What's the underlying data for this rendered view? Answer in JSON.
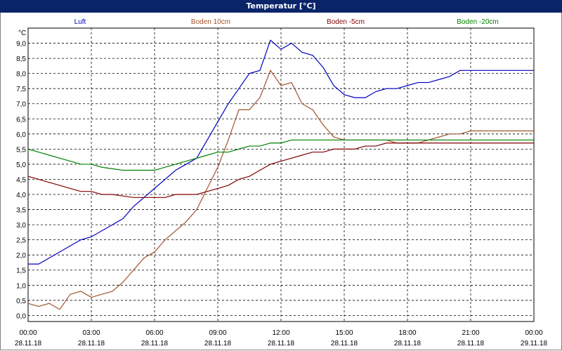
{
  "window": {
    "title": "Temperatur [°C]"
  },
  "chart_data": {
    "type": "line",
    "title": "Temperatur [°C]",
    "ylabel": "°C",
    "ylim": [
      -0.2,
      9.6
    ],
    "grid": true,
    "legend": "top",
    "y_ticks": [
      "9,0",
      "8,5",
      "8,0",
      "7,5",
      "7,0",
      "6,5",
      "6,0",
      "5,5",
      "5,0",
      "4,5",
      "4,0",
      "3,5",
      "3,0",
      "2,5",
      "2,0",
      "1,5",
      "1,0",
      "0,5",
      "0,0"
    ],
    "x_ticks": [
      {
        "time": "00:00",
        "date": "28.11.18"
      },
      {
        "time": "03:00",
        "date": "28.11.18"
      },
      {
        "time": "06:00",
        "date": "28.11.18"
      },
      {
        "time": "09:00",
        "date": "28.11.18"
      },
      {
        "time": "12:00",
        "date": "28.11.18"
      },
      {
        "time": "15:00",
        "date": "28.11.18"
      },
      {
        "time": "18:00",
        "date": "28.11.18"
      },
      {
        "time": "21:00",
        "date": "28.11.18"
      },
      {
        "time": "00:00",
        "date": "29.11.18"
      }
    ],
    "series": [
      {
        "name": "Luft",
        "color": "#0000c0",
        "x": [
          0,
          0.5,
          1,
          1.5,
          2,
          2.5,
          3,
          3.5,
          4,
          4.5,
          5,
          5.5,
          6,
          6.5,
          7,
          7.5,
          8,
          8.5,
          9,
          9.5,
          10,
          10.5,
          11,
          11.5,
          12,
          12.5,
          13,
          13.5,
          14,
          14.5,
          15,
          15.5,
          16,
          16.5,
          17,
          17.5,
          18,
          18.5,
          19,
          19.5,
          20,
          20.5,
          21,
          21.5,
          22,
          22.5,
          23,
          23.5,
          24
        ],
        "y": [
          1.7,
          1.7,
          1.9,
          2.1,
          2.3,
          2.5,
          2.6,
          2.8,
          3.0,
          3.2,
          3.6,
          3.9,
          4.2,
          4.5,
          4.8,
          5.0,
          5.2,
          5.8,
          6.4,
          7.0,
          7.5,
          8.0,
          8.1,
          9.1,
          8.8,
          9.0,
          8.7,
          8.6,
          8.2,
          7.6,
          7.3,
          7.2,
          7.2,
          7.4,
          7.5,
          7.5,
          7.6,
          7.7,
          7.7,
          7.8,
          7.9,
          8.1,
          8.1,
          8.1,
          8.1,
          8.1,
          8.1,
          8.1,
          8.1
        ]
      },
      {
        "name": "Boden 10cm",
        "color": "#a0522d",
        "x": [
          0,
          0.5,
          1,
          1.5,
          2,
          2.5,
          3,
          3.5,
          4,
          4.5,
          5,
          5.5,
          6,
          6.5,
          7,
          7.5,
          8,
          8.5,
          9,
          9.5,
          10,
          10.5,
          11,
          11.5,
          12,
          12.5,
          13,
          13.5,
          14,
          14.5,
          15,
          15.5,
          16,
          16.5,
          17,
          17.5,
          18,
          18.5,
          19,
          19.5,
          20,
          20.5,
          21,
          21.5,
          22,
          22.5,
          23,
          23.5,
          24
        ],
        "y": [
          0.4,
          0.3,
          0.4,
          0.2,
          0.7,
          0.8,
          0.6,
          0.7,
          0.8,
          1.1,
          1.5,
          1.9,
          2.1,
          2.5,
          2.8,
          3.1,
          3.5,
          4.2,
          4.9,
          5.8,
          6.8,
          6.8,
          7.2,
          8.1,
          7.6,
          7.7,
          7.0,
          6.8,
          6.3,
          5.9,
          5.8,
          5.8,
          5.8,
          5.8,
          5.8,
          5.7,
          5.7,
          5.7,
          5.8,
          5.9,
          6.0,
          6.0,
          6.1,
          6.1,
          6.1,
          6.1,
          6.1,
          6.1,
          6.1
        ]
      },
      {
        "name": "Boden -5cm",
        "color": "#800000",
        "x": [
          0,
          0.5,
          1,
          1.5,
          2,
          2.5,
          3,
          3.5,
          4,
          4.5,
          5,
          5.5,
          6,
          6.5,
          7,
          7.5,
          8,
          8.5,
          9,
          9.5,
          10,
          10.5,
          11,
          11.5,
          12,
          12.5,
          13,
          13.5,
          14,
          14.5,
          15,
          15.5,
          16,
          16.5,
          17,
          17.5,
          18,
          18.5,
          19,
          19.5,
          20,
          20.5,
          21,
          21.5,
          22,
          22.5,
          23,
          23.5,
          24
        ],
        "y": [
          4.6,
          4.5,
          4.4,
          4.3,
          4.2,
          4.1,
          4.1,
          4.0,
          4.0,
          3.95,
          3.9,
          3.9,
          3.9,
          3.9,
          4.0,
          4.0,
          4.0,
          4.1,
          4.2,
          4.3,
          4.5,
          4.6,
          4.8,
          5.0,
          5.1,
          5.2,
          5.3,
          5.4,
          5.4,
          5.5,
          5.5,
          5.5,
          5.6,
          5.6,
          5.7,
          5.7,
          5.7,
          5.7,
          5.7,
          5.7,
          5.7,
          5.7,
          5.7,
          5.7,
          5.7,
          5.7,
          5.7,
          5.7,
          5.7
        ]
      },
      {
        "name": "Boden -20cm",
        "color": "#008000",
        "x": [
          0,
          0.5,
          1,
          1.5,
          2,
          2.5,
          3,
          3.5,
          4,
          4.5,
          5,
          5.5,
          6,
          6.5,
          7,
          7.5,
          8,
          8.5,
          9,
          9.5,
          10,
          10.5,
          11,
          11.5,
          12,
          12.5,
          13,
          13.5,
          14,
          14.5,
          15,
          15.5,
          16,
          16.5,
          17,
          17.5,
          18,
          18.5,
          19,
          19.5,
          20,
          20.5,
          21,
          21.5,
          22,
          22.5,
          23,
          23.5,
          24
        ],
        "y": [
          5.5,
          5.4,
          5.3,
          5.2,
          5.1,
          5.0,
          5.0,
          4.9,
          4.85,
          4.8,
          4.8,
          4.8,
          4.8,
          4.9,
          5.0,
          5.1,
          5.2,
          5.3,
          5.4,
          5.4,
          5.5,
          5.6,
          5.6,
          5.7,
          5.7,
          5.8,
          5.8,
          5.8,
          5.8,
          5.8,
          5.8,
          5.8,
          5.8,
          5.8,
          5.8,
          5.8,
          5.8,
          5.8,
          5.8,
          5.8,
          5.8,
          5.8,
          5.8,
          5.8,
          5.8,
          5.8,
          5.8,
          5.8,
          5.8
        ]
      }
    ]
  }
}
